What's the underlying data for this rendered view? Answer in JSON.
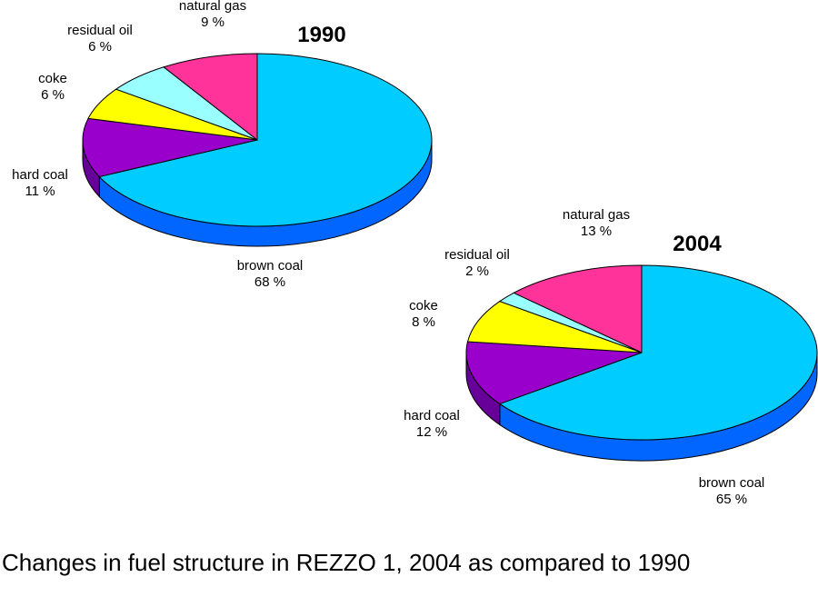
{
  "caption": "Changes in fuel structure in REZZO 1, 2004 as compared to 1990",
  "chart_data": [
    {
      "type": "pie",
      "title": "1990",
      "unit": "%",
      "slices": [
        {
          "label": "brown coal",
          "value": 68,
          "color": "#00CCFF",
          "side_color": "#0066FF"
        },
        {
          "label": "hard coal",
          "value": 11,
          "color": "#9900CC",
          "side_color": "#660099"
        },
        {
          "label": "coke",
          "value": 6,
          "color": "#FFFF00",
          "side_color": "#CCCC00"
        },
        {
          "label": "residual oil",
          "value": 6,
          "color": "#99FFFF",
          "side_color": "#66CCCC"
        },
        {
          "label": "natural gas",
          "value": 9,
          "color": "#FF3399",
          "side_color": "#CC0066"
        }
      ]
    },
    {
      "type": "pie",
      "title": "2004",
      "unit": "%",
      "slices": [
        {
          "label": "brown coal",
          "value": 65,
          "color": "#00CCFF",
          "side_color": "#0066FF"
        },
        {
          "label": "hard coal",
          "value": 12,
          "color": "#9900CC",
          "side_color": "#660099"
        },
        {
          "label": "coke",
          "value": 8,
          "color": "#FFFF00",
          "side_color": "#CCCC00"
        },
        {
          "label": "residual oil",
          "value": 2,
          "color": "#99FFFF",
          "side_color": "#66CCCC"
        },
        {
          "label": "natural gas",
          "value": 13,
          "color": "#FF3399",
          "side_color": "#CC0066"
        }
      ]
    }
  ]
}
